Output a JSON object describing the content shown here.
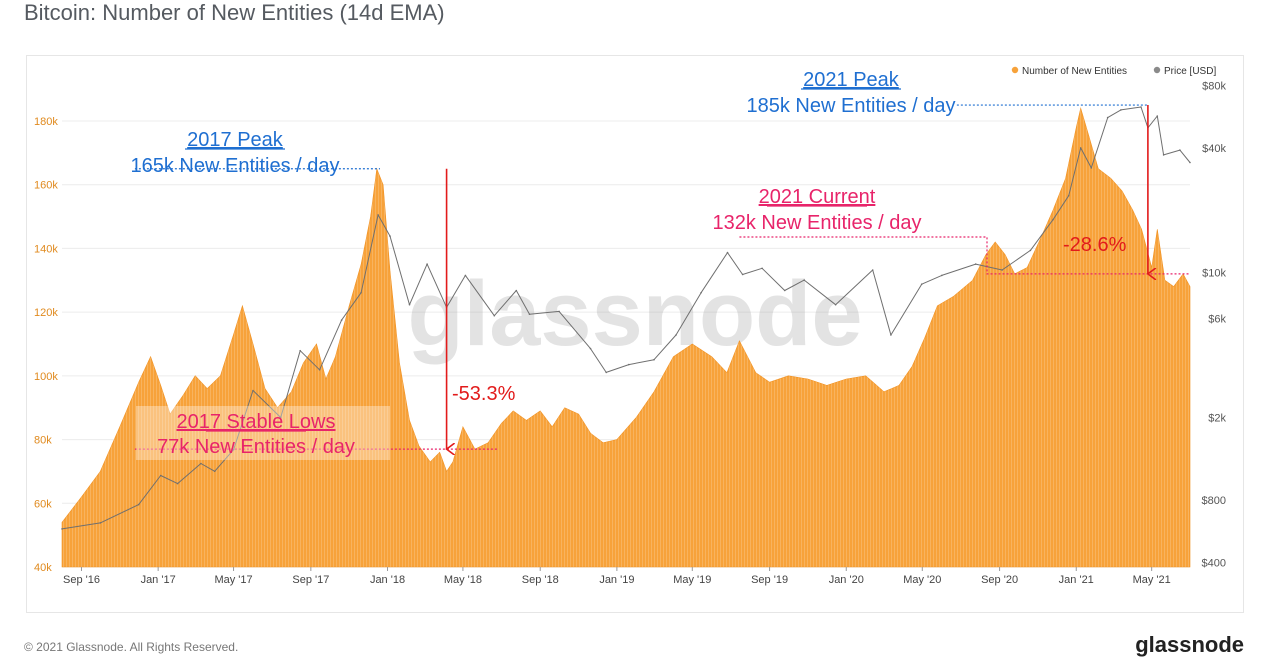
{
  "title": "Bitcoin: Number of New Entities (14d EMA)",
  "footer": {
    "copyright": "© 2021 Glassnode. All Rights Reserved.",
    "logo": "glassnode"
  },
  "colors": {
    "entities": "#f7a23a",
    "price": "#8a8a8a",
    "blue": "#1f6fd1",
    "pink": "#e8246a",
    "red": "#e21b1b"
  },
  "chart_data": {
    "type": "area",
    "watermark": "glassnode",
    "x_ticks": [
      "Sep '16",
      "Jan '17",
      "May '17",
      "Sep '17",
      "Jan '18",
      "May '18",
      "Sep '18",
      "Jan '19",
      "May '19",
      "Sep '19",
      "Jan '20",
      "May '20",
      "Sep '20",
      "Jan '21",
      "May '21"
    ],
    "y_left": {
      "ticks": [
        "40k",
        "60k",
        "80k",
        "100k",
        "120k",
        "140k",
        "160k",
        "180k"
      ],
      "values": [
        40000,
        60000,
        80000,
        100000,
        120000,
        140000,
        160000,
        180000
      ],
      "range": [
        40000,
        196000
      ]
    },
    "y_right": {
      "scale": "log",
      "ticks": [
        "$400",
        "$800",
        "$2k",
        "$6k",
        "$10k",
        "$40k",
        "$80k"
      ],
      "values": [
        400,
        800,
        2000,
        6000,
        10000,
        40000,
        80000
      ],
      "range": [
        380,
        95000
      ]
    },
    "legend": {
      "placement": "top-right",
      "items": [
        {
          "label": "Number of New Entities",
          "color": "#f7a23a"
        },
        {
          "label": "Price [USD]",
          "color": "#8a8a8a"
        }
      ]
    },
    "series": [
      {
        "name": "Number of New Entities",
        "axis": "left",
        "points": [
          [
            "2016-08-01",
            54000
          ],
          [
            "2016-09-01",
            62000
          ],
          [
            "2016-10-01",
            70000
          ],
          [
            "2016-11-01",
            84000
          ],
          [
            "2016-12-01",
            98000
          ],
          [
            "2016-12-20",
            106000
          ],
          [
            "2017-01-05",
            97000
          ],
          [
            "2017-01-20",
            88000
          ],
          [
            "2017-02-10",
            94000
          ],
          [
            "2017-03-01",
            100000
          ],
          [
            "2017-03-20",
            96000
          ],
          [
            "2017-04-10",
            100000
          ],
          [
            "2017-05-01",
            113000
          ],
          [
            "2017-05-15",
            122000
          ],
          [
            "2017-06-01",
            110000
          ],
          [
            "2017-06-20",
            96000
          ],
          [
            "2017-07-10",
            90000
          ],
          [
            "2017-08-01",
            95000
          ],
          [
            "2017-08-20",
            104000
          ],
          [
            "2017-09-10",
            110000
          ],
          [
            "2017-09-25",
            99000
          ],
          [
            "2017-10-10",
            106000
          ],
          [
            "2017-11-01",
            122000
          ],
          [
            "2017-11-20",
            135000
          ],
          [
            "2017-12-05",
            150000
          ],
          [
            "2017-12-15",
            165000
          ],
          [
            "2017-12-25",
            160000
          ],
          [
            "2018-01-05",
            133000
          ],
          [
            "2018-01-20",
            104000
          ],
          [
            "2018-02-05",
            86000
          ],
          [
            "2018-02-20",
            78000
          ],
          [
            "2018-03-10",
            73000
          ],
          [
            "2018-03-25",
            76000
          ],
          [
            "2018-04-05",
            70000
          ],
          [
            "2018-04-15",
            73000
          ],
          [
            "2018-05-01",
            84000
          ],
          [
            "2018-05-20",
            77000
          ],
          [
            "2018-06-10",
            79000
          ],
          [
            "2018-07-01",
            85000
          ],
          [
            "2018-07-20",
            89000
          ],
          [
            "2018-08-10",
            86000
          ],
          [
            "2018-09-01",
            89000
          ],
          [
            "2018-09-20",
            84000
          ],
          [
            "2018-10-10",
            90000
          ],
          [
            "2018-11-01",
            88000
          ],
          [
            "2018-11-20",
            82000
          ],
          [
            "2018-12-10",
            79000
          ],
          [
            "2019-01-01",
            80000
          ],
          [
            "2019-02-01",
            87000
          ],
          [
            "2019-03-01",
            95000
          ],
          [
            "2019-04-01",
            106000
          ],
          [
            "2019-05-01",
            110000
          ],
          [
            "2019-06-01",
            106000
          ],
          [
            "2019-06-25",
            101000
          ],
          [
            "2019-07-15",
            111000
          ],
          [
            "2019-08-10",
            101000
          ],
          [
            "2019-09-01",
            98000
          ],
          [
            "2019-10-01",
            100000
          ],
          [
            "2019-11-01",
            99000
          ],
          [
            "2019-12-01",
            97000
          ],
          [
            "2020-01-01",
            99000
          ],
          [
            "2020-02-01",
            100000
          ],
          [
            "2020-03-01",
            95000
          ],
          [
            "2020-03-25",
            97000
          ],
          [
            "2020-04-15",
            103000
          ],
          [
            "2020-05-05",
            112000
          ],
          [
            "2020-05-25",
            122000
          ],
          [
            "2020-06-20",
            125000
          ],
          [
            "2020-07-20",
            130000
          ],
          [
            "2020-08-10",
            138000
          ],
          [
            "2020-08-25",
            142000
          ],
          [
            "2020-09-10",
            138000
          ],
          [
            "2020-09-25",
            132000
          ],
          [
            "2020-10-15",
            134000
          ],
          [
            "2020-11-05",
            143000
          ],
          [
            "2020-11-25",
            152000
          ],
          [
            "2020-12-15",
            162000
          ],
          [
            "2021-01-01",
            178000
          ],
          [
            "2021-01-08",
            184000
          ],
          [
            "2021-01-20",
            176000
          ],
          [
            "2021-02-05",
            165000
          ],
          [
            "2021-02-25",
            162000
          ],
          [
            "2021-03-15",
            158000
          ],
          [
            "2021-04-01",
            152000
          ],
          [
            "2021-04-15",
            146000
          ],
          [
            "2021-05-01",
            134000
          ],
          [
            "2021-05-10",
            146000
          ],
          [
            "2021-05-22",
            130000
          ],
          [
            "2021-06-05",
            128000
          ],
          [
            "2021-06-20",
            132000
          ],
          [
            "2021-07-01",
            128000
          ]
        ]
      },
      {
        "name": "Price [USD]",
        "axis": "right",
        "points": [
          [
            "2016-08-01",
            580
          ],
          [
            "2016-10-01",
            620
          ],
          [
            "2016-12-01",
            760
          ],
          [
            "2017-01-05",
            1050
          ],
          [
            "2017-02-01",
            960
          ],
          [
            "2017-03-10",
            1200
          ],
          [
            "2017-04-01",
            1100
          ],
          [
            "2017-05-01",
            1400
          ],
          [
            "2017-06-01",
            2700
          ],
          [
            "2017-07-15",
            2000
          ],
          [
            "2017-08-15",
            4200
          ],
          [
            "2017-09-15",
            3400
          ],
          [
            "2017-10-20",
            5900
          ],
          [
            "2017-11-20",
            8000
          ],
          [
            "2017-12-17",
            19000
          ],
          [
            "2018-01-05",
            15000
          ],
          [
            "2018-02-05",
            7000
          ],
          [
            "2018-03-05",
            11000
          ],
          [
            "2018-04-05",
            6800
          ],
          [
            "2018-05-05",
            9700
          ],
          [
            "2018-06-20",
            6200
          ],
          [
            "2018-07-25",
            8200
          ],
          [
            "2018-08-15",
            6300
          ],
          [
            "2018-10-01",
            6500
          ],
          [
            "2018-11-20",
            4300
          ],
          [
            "2018-12-15",
            3300
          ],
          [
            "2019-01-20",
            3600
          ],
          [
            "2019-03-01",
            3800
          ],
          [
            "2019-04-05",
            5000
          ],
          [
            "2019-05-15",
            8000
          ],
          [
            "2019-06-26",
            12500
          ],
          [
            "2019-07-20",
            9800
          ],
          [
            "2019-08-20",
            10500
          ],
          [
            "2019-09-25",
            8200
          ],
          [
            "2019-10-26",
            9200
          ],
          [
            "2019-12-15",
            7000
          ],
          [
            "2020-02-12",
            10300
          ],
          [
            "2020-03-12",
            5000
          ],
          [
            "2020-04-30",
            8800
          ],
          [
            "2020-06-01",
            9700
          ],
          [
            "2020-07-25",
            11000
          ],
          [
            "2020-09-05",
            10300
          ],
          [
            "2020-10-20",
            12800
          ],
          [
            "2020-11-25",
            18000
          ],
          [
            "2020-12-20",
            23500
          ],
          [
            "2021-01-08",
            40000
          ],
          [
            "2021-01-25",
            32000
          ],
          [
            "2021-02-20",
            56000
          ],
          [
            "2021-03-13",
            61000
          ],
          [
            "2021-04-14",
            63000
          ],
          [
            "2021-04-25",
            50000
          ],
          [
            "2021-05-10",
            57000
          ],
          [
            "2021-05-20",
            37000
          ],
          [
            "2021-06-15",
            39000
          ],
          [
            "2021-07-01",
            34000
          ]
        ]
      }
    ],
    "annotations": [
      {
        "id": "peak2017",
        "title": "2017 Peak",
        "subtitle": "165k New Entities / day",
        "color": "blue",
        "level": 165000,
        "x_from": "2016-11-25",
        "x_to": "2017-12-20"
      },
      {
        "id": "lows2017",
        "title": "2017 Stable Lows",
        "subtitle": "77k New Entities / day",
        "color": "pink",
        "level": 77000,
        "x_from": "2016-11-25",
        "x_to": "2018-06-25"
      },
      {
        "id": "peak2021",
        "title": "2021 Peak",
        "subtitle": "185k New Entities / day",
        "color": "blue",
        "level": 185000,
        "x_from": "2020-06-25",
        "x_to": "2021-04-25"
      },
      {
        "id": "current2021",
        "title": "2021 Current",
        "subtitle": "132k New Entities / day",
        "color": "pink",
        "level": 132000,
        "x_from": "2019-07-15",
        "x_to": "2021-06-30"
      },
      {
        "id": "drop2018",
        "label": "-53.3%",
        "from": 165000,
        "to": 77000,
        "x": "2018-04-05"
      },
      {
        "id": "drop2021",
        "label": "-28.6%",
        "from": 185000,
        "to": 132000,
        "x": "2021-04-25"
      }
    ]
  }
}
